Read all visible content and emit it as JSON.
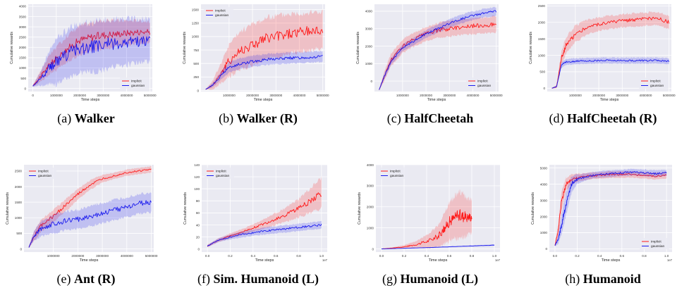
{
  "figure": {
    "captions": [
      {
        "label": "(a)",
        "title": "Walker"
      },
      {
        "label": "(b)",
        "title": "Walker (R)"
      },
      {
        "label": "(c)",
        "title": "HalfCheetah"
      },
      {
        "label": "(d)",
        "title": "HalfCheetah (R)"
      },
      {
        "label": "(e)",
        "title": "Ant (R)"
      },
      {
        "label": "(f)",
        "title": "Sim. Humanoid (L)"
      },
      {
        "label": "(g)",
        "title": "Humanoid (L)"
      },
      {
        "label": "(h)",
        "title": "Humanoid"
      }
    ]
  },
  "colors": {
    "implicit": "#ff1a1a",
    "gaussian": "#1a1aee",
    "plot_bg": "#eaeaf2",
    "grid": "#ffffff"
  },
  "chart_data": [
    {
      "type": "line",
      "title": "",
      "xlabel": "Time steps",
      "ylabel": "Cumulative rewards",
      "xlim": [
        -200000,
        5100000
      ],
      "ylim": [
        -150,
        4100
      ],
      "xticks": [
        0,
        1000000,
        2000000,
        3000000,
        4000000,
        5000000
      ],
      "xtick_labels": [
        "0",
        "1000000",
        "2000000",
        "3000000",
        "4000000",
        "5000000"
      ],
      "yticks": [
        0,
        500,
        1000,
        1500,
        2000,
        2500,
        3000,
        3500,
        4000
      ],
      "ytick_labels": [
        "0",
        "500",
        "1000",
        "1500",
        "2000",
        "2500",
        "3000",
        "3500",
        "4000"
      ],
      "x_exponent": "",
      "legend": "bottom-right",
      "series": [
        {
          "name": "implicit",
          "x": [
            0,
            300000,
            700000,
            1000000,
            1500000,
            2000000,
            2500000,
            3000000,
            3500000,
            4000000,
            4500000,
            5000000
          ],
          "values": [
            120,
            550,
            1150,
            1450,
            1950,
            2350,
            2500,
            2600,
            2650,
            2700,
            2750,
            2750
          ],
          "spread": [
            40,
            250,
            450,
            550,
            650,
            700,
            700,
            700,
            650,
            600,
            550,
            500
          ]
        },
        {
          "name": "gaussian",
          "x": [
            0,
            300000,
            700000,
            1000000,
            1500000,
            2000000,
            2500000,
            3000000,
            3500000,
            4000000,
            4500000,
            5000000
          ],
          "values": [
            120,
            450,
            1000,
            1300,
            1700,
            1950,
            2000,
            2100,
            2200,
            2250,
            2300,
            2350
          ],
          "spread": [
            40,
            300,
            800,
            1100,
            1200,
            1200,
            1200,
            1200,
            1150,
            1100,
            1050,
            1000
          ]
        }
      ]
    },
    {
      "type": "line",
      "title": "",
      "xlabel": "Time steps",
      "ylabel": "Cumulative rewards",
      "xlim": [
        -200000,
        5100000
      ],
      "ylim": [
        -20,
        1600
      ],
      "xticks": [
        1000000,
        2000000,
        3000000,
        4000000,
        5000000
      ],
      "xtick_labels": [
        "1000000",
        "2000000",
        "3000000",
        "4000000",
        "5000000"
      ],
      "yticks": [
        0,
        250,
        500,
        750,
        1000,
        1250,
        1500
      ],
      "ytick_labels": [
        "0",
        "250",
        "500",
        "750",
        "1000",
        "1250",
        "1500"
      ],
      "x_exponent": "",
      "legend": "top-left",
      "series": [
        {
          "name": "implicit",
          "x": [
            0,
            300000,
            700000,
            1000000,
            1500000,
            2000000,
            2500000,
            3000000,
            3500000,
            4000000,
            4500000,
            5000000
          ],
          "values": [
            20,
            100,
            350,
            550,
            750,
            850,
            950,
            1000,
            1050,
            1080,
            1100,
            1120
          ],
          "spread": [
            5,
            80,
            200,
            300,
            350,
            380,
            380,
            380,
            370,
            360,
            350,
            340
          ]
        },
        {
          "name": "gaussian",
          "x": [
            0,
            300000,
            700000,
            1000000,
            1500000,
            2000000,
            2500000,
            3000000,
            3500000,
            4000000,
            4500000,
            5000000
          ],
          "values": [
            20,
            100,
            300,
            430,
            500,
            540,
            570,
            590,
            600,
            610,
            620,
            630
          ],
          "spread": [
            5,
            40,
            80,
            100,
            100,
            100,
            100,
            100,
            100,
            100,
            100,
            100
          ]
        }
      ]
    },
    {
      "type": "line",
      "title": "",
      "xlabel": "Time steps",
      "ylabel": "Cumulative rewards",
      "xlim": [
        -200000,
        5100000
      ],
      "ylim": [
        -600,
        4400
      ],
      "xticks": [
        1000000,
        2000000,
        3000000,
        4000000,
        5000000
      ],
      "xtick_labels": [
        "1000000",
        "2000000",
        "3000000",
        "4000000",
        "5000000"
      ],
      "yticks": [
        0,
        1000,
        2000,
        3000,
        4000
      ],
      "ytick_labels": [
        "0",
        "1000",
        "2000",
        "3000",
        "4000"
      ],
      "x_exponent": "",
      "legend": "bottom-right",
      "series": [
        {
          "name": "implicit",
          "x": [
            0,
            200000,
            500000,
            1000000,
            1500000,
            2000000,
            2500000,
            3000000,
            3500000,
            4000000,
            4500000,
            5000000
          ],
          "values": [
            -500,
            200,
            1200,
            2000,
            2400,
            2700,
            2900,
            3000,
            3100,
            3150,
            3200,
            3250
          ],
          "spread": [
            30,
            250,
            350,
            400,
            400,
            400,
            420,
            440,
            450,
            450,
            450,
            450
          ]
        },
        {
          "name": "gaussian",
          "x": [
            0,
            200000,
            500000,
            1000000,
            1500000,
            2000000,
            2500000,
            3000000,
            3500000,
            4000000,
            4500000,
            5000000
          ],
          "values": [
            -500,
            200,
            1100,
            1900,
            2300,
            2700,
            3000,
            3300,
            3550,
            3750,
            3900,
            4000
          ],
          "spread": [
            30,
            150,
            200,
            200,
            220,
            220,
            230,
            240,
            250,
            250,
            250,
            250
          ]
        }
      ]
    },
    {
      "type": "line",
      "title": "",
      "xlabel": "Time steps",
      "ylabel": "Cumulative rewards",
      "xlim": [
        -200000,
        5100000
      ],
      "ylim": [
        -100,
        2550
      ],
      "xticks": [
        1000000,
        2000000,
        3000000,
        4000000,
        5000000
      ],
      "xtick_labels": [
        "1000000",
        "2000000",
        "3000000",
        "4000000",
        "5000000"
      ],
      "yticks": [
        0,
        500,
        1000,
        1500,
        2000,
        2500
      ],
      "ytick_labels": [
        "0",
        "500",
        "1000",
        "1500",
        "2000",
        "2500"
      ],
      "x_exponent": "",
      "legend": "bottom-right",
      "series": [
        {
          "name": "implicit",
          "x": [
            0,
            200000,
            400000,
            600000,
            1000000,
            1500000,
            2000000,
            2500000,
            3000000,
            3500000,
            4000000,
            4500000,
            5000000
          ],
          "values": [
            0,
            50,
            900,
            1300,
            1650,
            1850,
            1950,
            2000,
            2050,
            2080,
            2100,
            2120,
            2000
          ],
          "spread": [
            10,
            50,
            200,
            250,
            250,
            220,
            200,
            200,
            200,
            200,
            200,
            200,
            200
          ]
        },
        {
          "name": "gaussian",
          "x": [
            0,
            200000,
            400000,
            600000,
            1000000,
            1500000,
            2000000,
            2500000,
            3000000,
            3500000,
            4000000,
            4500000,
            5000000
          ],
          "values": [
            0,
            50,
            700,
            800,
            820,
            830,
            840,
            840,
            840,
            840,
            840,
            840,
            820
          ],
          "spread": [
            10,
            30,
            80,
            90,
            90,
            90,
            90,
            90,
            90,
            90,
            90,
            90,
            90
          ]
        }
      ]
    },
    {
      "type": "line",
      "title": "",
      "xlabel": "Time steps",
      "ylabel": "Cumulative rewards",
      "xlim": [
        -200000,
        5100000
      ],
      "ylim": [
        -100,
        2700
      ],
      "xticks": [
        1000000,
        2000000,
        3000000,
        4000000,
        5000000
      ],
      "xtick_labels": [
        "1000000",
        "2000000",
        "3000000",
        "4000000",
        "5000000"
      ],
      "yticks": [
        0,
        500,
        1000,
        1500,
        2000,
        2500
      ],
      "ytick_labels": [
        "0",
        "500",
        "1000",
        "1500",
        "2000",
        "2500"
      ],
      "x_exponent": "",
      "legend": "top-left",
      "series": [
        {
          "name": "implicit",
          "x": [
            0,
            200000,
            500000,
            1000000,
            1500000,
            2000000,
            2500000,
            3000000,
            3500000,
            4000000,
            4500000,
            5000000
          ],
          "values": [
            50,
            400,
            750,
            1050,
            1400,
            1750,
            2050,
            2250,
            2350,
            2450,
            2500,
            2550
          ],
          "spread": [
            20,
            150,
            200,
            200,
            200,
            180,
            150,
            120,
            100,
            100,
            100,
            100
          ]
        },
        {
          "name": "gaussian",
          "x": [
            0,
            200000,
            500000,
            1000000,
            1500000,
            2000000,
            2500000,
            3000000,
            3500000,
            4000000,
            4500000,
            5000000
          ],
          "values": [
            50,
            400,
            650,
            800,
            900,
            950,
            1050,
            1150,
            1250,
            1350,
            1450,
            1500
          ],
          "spread": [
            20,
            150,
            250,
            300,
            300,
            300,
            320,
            320,
            320,
            320,
            320,
            320
          ]
        }
      ]
    },
    {
      "type": "line",
      "title": "",
      "xlabel": "Time steps",
      "ylabel": "Cumulative rewards",
      "xlim": [
        -0.05,
        1.05
      ],
      "ylim": [
        -5,
        140
      ],
      "xticks": [
        0.0,
        0.2,
        0.4,
        0.6,
        0.8,
        1.0
      ],
      "xtick_labels": [
        "0.0",
        "0.2",
        "0.4",
        "0.6",
        "0.8",
        "1.0"
      ],
      "yticks": [
        0,
        20,
        40,
        60,
        80,
        100,
        120,
        140
      ],
      "ytick_labels": [
        "0",
        "20",
        "40",
        "60",
        "80",
        "100",
        "120",
        "140"
      ],
      "x_exponent": "1e7",
      "legend": "top-left",
      "series": [
        {
          "name": "implicit",
          "x": [
            0,
            0.1,
            0.2,
            0.3,
            0.4,
            0.5,
            0.6,
            0.7,
            0.8,
            0.9,
            1.0
          ],
          "values": [
            5,
            15,
            22,
            28,
            35,
            42,
            50,
            58,
            68,
            80,
            93
          ],
          "spread": [
            2,
            3,
            4,
            5,
            6,
            8,
            10,
            12,
            15,
            20,
            25
          ]
        },
        {
          "name": "gaussian",
          "x": [
            0,
            0.1,
            0.2,
            0.3,
            0.4,
            0.5,
            0.6,
            0.7,
            0.8,
            0.9,
            1.0
          ],
          "values": [
            5,
            15,
            20,
            24,
            27,
            30,
            32,
            34,
            36,
            38,
            40
          ],
          "spread": [
            2,
            3,
            4,
            5,
            5,
            6,
            6,
            6,
            6,
            6,
            6
          ]
        }
      ]
    },
    {
      "type": "line",
      "title": "",
      "xlabel": "Time steps",
      "ylabel": "Cumulative rewards",
      "xlim": [
        -0.05,
        1.05
      ],
      "ylim": [
        -150,
        4000
      ],
      "xticks": [
        0.0,
        0.2,
        0.4,
        0.6,
        0.8,
        1.0
      ],
      "xtick_labels": [
        "0.0",
        "0.2",
        "0.4",
        "0.6",
        "0.8",
        "1.0"
      ],
      "yticks": [
        0,
        1000,
        2000,
        3000,
        4000
      ],
      "ytick_labels": [
        "0",
        "1000",
        "2000",
        "3000",
        "4000"
      ],
      "x_exponent": "1e7",
      "legend": "top-left",
      "series": [
        {
          "name": "implicit",
          "x": [
            0,
            0.1,
            0.2,
            0.3,
            0.4,
            0.5,
            0.55,
            0.6,
            0.65,
            0.7,
            0.75,
            0.8
          ],
          "values": [
            0,
            40,
            100,
            200,
            350,
            600,
            900,
            1300,
            1500,
            1600,
            1500,
            1550
          ],
          "spread": [
            10,
            30,
            80,
            150,
            300,
            500,
            700,
            900,
            1000,
            1100,
            900,
            800
          ]
        },
        {
          "name": "gaussian",
          "x": [
            0,
            0.2,
            0.4,
            0.6,
            0.8,
            1.0
          ],
          "values": [
            0,
            30,
            60,
            100,
            140,
            180
          ],
          "spread": [
            5,
            10,
            15,
            20,
            25,
            30
          ]
        }
      ]
    },
    {
      "type": "line",
      "title": "",
      "xlabel": "Time steps",
      "ylabel": "Cumulative rewards",
      "xlim": [
        -0.05,
        1.05
      ],
      "ylim": [
        -200,
        5200
      ],
      "xticks": [
        0.0,
        0.2,
        0.4,
        0.6,
        0.8,
        1.0
      ],
      "xtick_labels": [
        "0.0",
        "0.2",
        "0.4",
        "0.6",
        "0.8",
        "1.0"
      ],
      "yticks": [
        0,
        1000,
        2000,
        3000,
        4000,
        5000
      ],
      "ytick_labels": [
        "0",
        "1000",
        "2000",
        "3000",
        "4000",
        "5000"
      ],
      "x_exponent": "1e7",
      "legend": "bottom-right",
      "series": [
        {
          "name": "implicit",
          "x": [
            0,
            0.03,
            0.06,
            0.1,
            0.15,
            0.2,
            0.3,
            0.4,
            0.5,
            0.6,
            0.7,
            0.8,
            0.9,
            1.0
          ],
          "values": [
            200,
            1200,
            3000,
            4000,
            4300,
            4400,
            4500,
            4550,
            4600,
            4600,
            4600,
            4550,
            4500,
            4550
          ],
          "spread": [
            50,
            400,
            600,
            400,
            300,
            250,
            200,
            200,
            200,
            200,
            200,
            200,
            200,
            200
          ]
        },
        {
          "name": "gaussian",
          "x": [
            0,
            0.03,
            0.06,
            0.1,
            0.15,
            0.2,
            0.3,
            0.4,
            0.5,
            0.6,
            0.7,
            0.8,
            0.9,
            1.0
          ],
          "values": [
            200,
            600,
            1500,
            2800,
            4000,
            4300,
            4500,
            4600,
            4650,
            4700,
            4750,
            4700,
            4650,
            4700
          ],
          "spread": [
            50,
            300,
            600,
            700,
            500,
            300,
            200,
            200,
            200,
            200,
            200,
            200,
            200,
            200
          ]
        }
      ]
    }
  ]
}
